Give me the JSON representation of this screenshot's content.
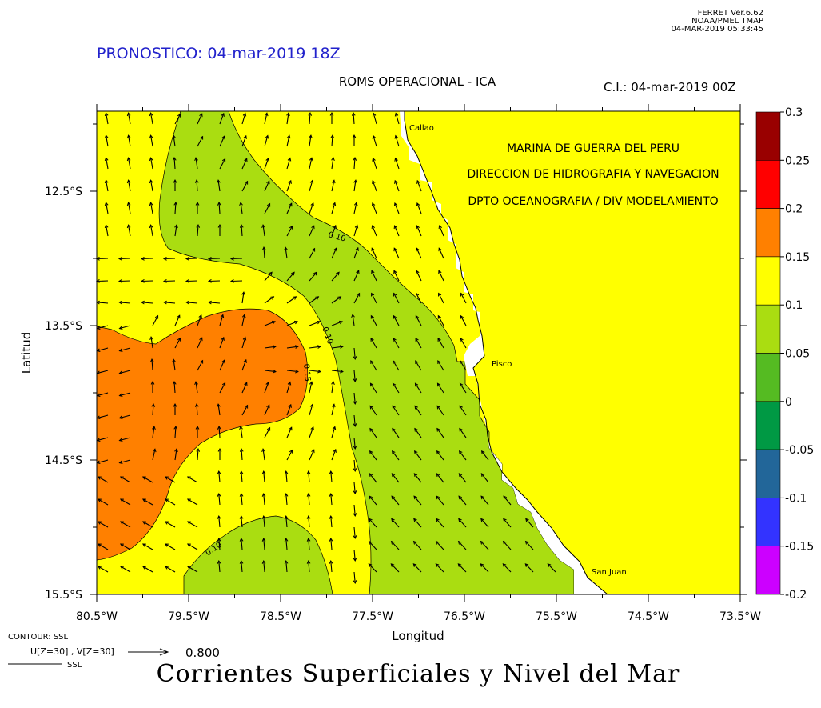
{
  "header": {
    "ferret_version": "FERRET  Ver.6.62",
    "ferret_org": "NOAA/PMEL TMAP",
    "ferret_timestamp": "04-MAR-2019 05:33:45",
    "forecast_title": "PRONOSTICO: 04-mar-2019 18Z",
    "model_title": "ROMS OPERACIONAL - ICA",
    "initial_condition": "C.I.: 04-mar-2019 00Z"
  },
  "institution": {
    "line1": "MARINA DE GUERRA DEL PERU",
    "line2": "DIRECCION DE HIDROGRAFIA Y NAVEGACION",
    "line3": "DPTO OCEANOGRAFIA / DIV MODELAMIENTO"
  },
  "axes": {
    "xlabel": "Longitud",
    "ylabel": "Latitud",
    "x_ticks": [
      "80.5°W",
      "79.5°W",
      "78.5°W",
      "77.5°W",
      "76.5°W",
      "75.5°W",
      "74.5°W",
      "73.5°W"
    ],
    "y_ticks": [
      "12.5°S",
      "13.5°S",
      "14.5°S",
      "15.5°S"
    ],
    "x_range": [
      -80.5,
      -73.5
    ],
    "y_range": [
      -15.5,
      -11.9
    ]
  },
  "places": [
    {
      "name": "Callao"
    },
    {
      "name": "Pisco"
    },
    {
      "name": "San Juan"
    }
  ],
  "contour_labels": [
    "0.10",
    "0.10",
    "0.15",
    "0.10"
  ],
  "colorbar": {
    "labels": [
      "0.3",
      "0.25",
      "0.2",
      "0.15",
      "0.1",
      "0.05",
      "0",
      "-0.05",
      "-0.1",
      "-0.15",
      "-0.2"
    ],
    "colors": [
      "#990000",
      "#ff0000",
      "#ff8000",
      "#ffff00",
      "#aadd11",
      "#55bb22",
      "#009944",
      "#226699",
      "#3333ff",
      "#cc00ff"
    ]
  },
  "legend": {
    "contour_label": "CONTOUR: SSL",
    "vector_label": "U[Z=30] , V[Z=30]",
    "vector_scale": "0.800",
    "line_label": "SSL"
  },
  "footer_title": "Corrientes Superficiales y Nivel del Mar",
  "colors": {
    "yellow": "#ffff00",
    "green": "#aadd11",
    "orange": "#ff8000",
    "title_blue": "#2222cc"
  }
}
